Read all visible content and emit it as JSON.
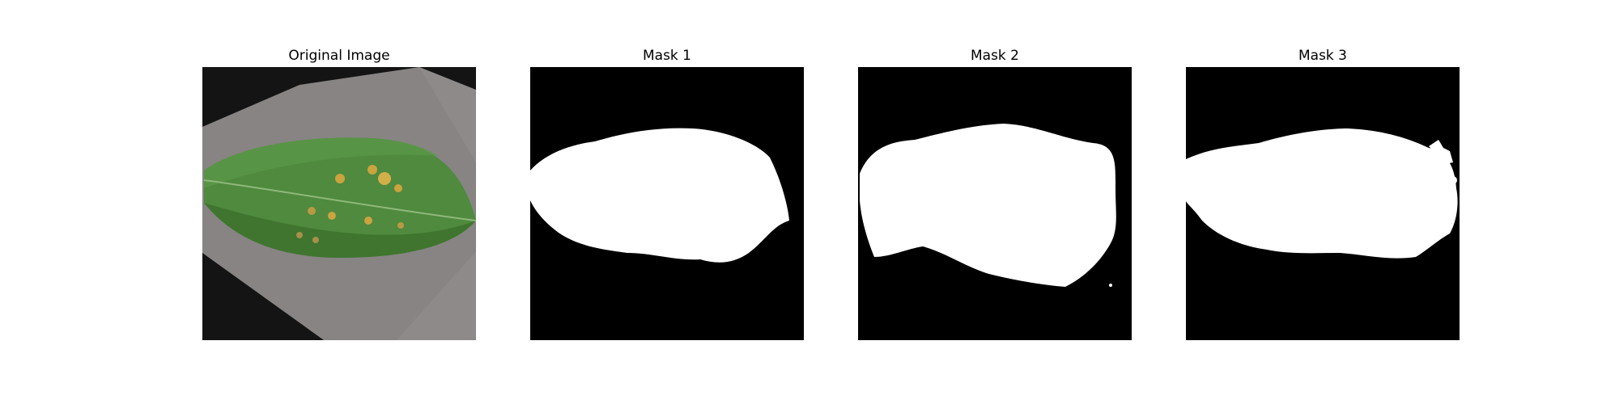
{
  "panels": [
    {
      "title": "Original Image"
    },
    {
      "title": "Mask 1"
    },
    {
      "title": "Mask 2"
    },
    {
      "title": "Mask 3"
    }
  ],
  "colors": {
    "mask_background": "#000000",
    "mask_foreground": "#ffffff",
    "leaf_green": "#4f8a3e",
    "leaf_dark": "#3b6f2c",
    "backdrop_gray": "#8d8a89",
    "corner_black": "#141414",
    "lesion_yellow": "#c9a43f"
  },
  "icons": [
    "leaf-photo",
    "segmentation-mask"
  ]
}
